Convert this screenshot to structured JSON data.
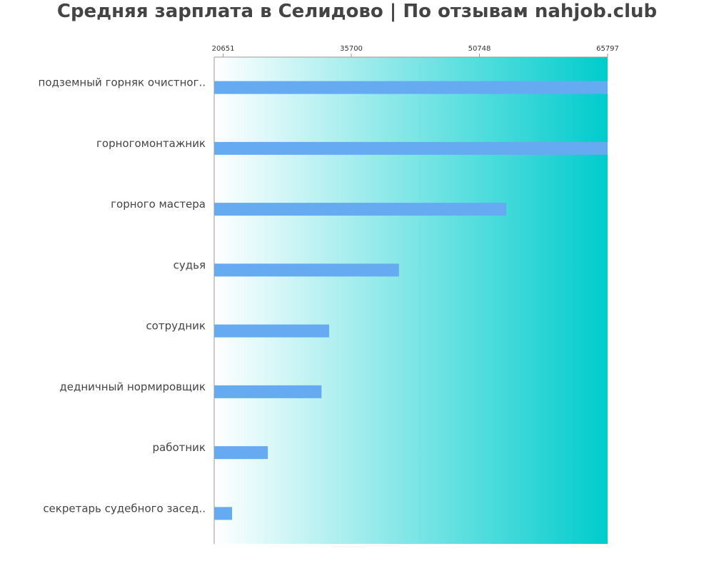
{
  "title": "Средняя зарплата в Селидово | По отзывам nahjob.club",
  "colors": {
    "bar": "#66aaf2",
    "gradient_start": "#ffffff",
    "gradient_end": "#00cccc",
    "text": "#444444",
    "axis": "#999999"
  },
  "chart_data": {
    "type": "bar",
    "orientation": "horizontal",
    "title": "Средняя зарплата в Селидово | По отзывам nahjob.club",
    "categories": [
      "подземный горняк очистног..",
      "горногомонтажник",
      "горного мастера",
      "судья",
      "сотрудник",
      "дедничный нормировщик",
      "работник",
      "секретарь судебного засед.."
    ],
    "values": [
      65797,
      65797,
      53900,
      41300,
      33100,
      32200,
      25900,
      21700
    ],
    "x_ticks": [
      20651,
      35700,
      50748,
      65797
    ],
    "x_tick_labels": [
      "20651",
      "35700",
      "50748",
      "65797"
    ],
    "xlim": [
      19600,
      65797
    ],
    "xlabel": "",
    "ylabel": "",
    "grid": false,
    "legend": "none"
  }
}
